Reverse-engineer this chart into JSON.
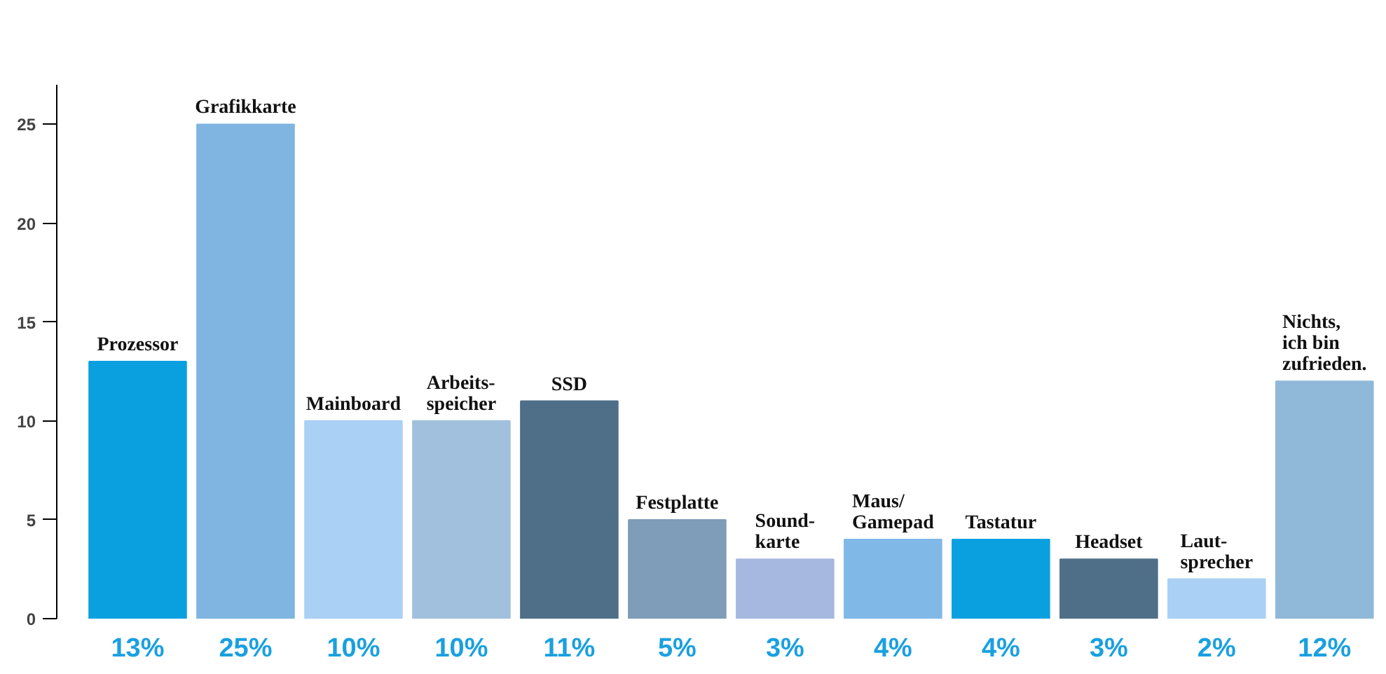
{
  "chart_data": {
    "type": "bar",
    "categories": [
      "Prozessor",
      "Grafikkarte",
      "Mainboard",
      "Arbeits-\nspeicher",
      "SSD",
      "Festplatte",
      "Sound-\nkarte",
      "Maus/\nGamepad",
      "Tastatur",
      "Headset",
      "Laut-\nsprecher",
      "Nichts,\nich bin\nzufrieden."
    ],
    "values": [
      13,
      25,
      10,
      10,
      11,
      5,
      3,
      4,
      4,
      3,
      2,
      12
    ],
    "colors": [
      "#0aa0e0",
      "#7fb5e0",
      "#aad0f5",
      "#a0c0dd",
      "#4f6f88",
      "#7f9cb8",
      "#a6b8e0",
      "#80b8e8",
      "#0aa0e0",
      "#4f6f88",
      "#aad0f5",
      "#90b8d8"
    ],
    "value_labels": [
      "13%",
      "25%",
      "10%",
      "10%",
      "11%",
      "5%",
      "3%",
      "4%",
      "4%",
      "3%",
      "2%",
      "12%"
    ],
    "ylim": [
      0,
      27
    ],
    "yticks": [
      0,
      5,
      10,
      15,
      20,
      25
    ],
    "grid": false
  }
}
